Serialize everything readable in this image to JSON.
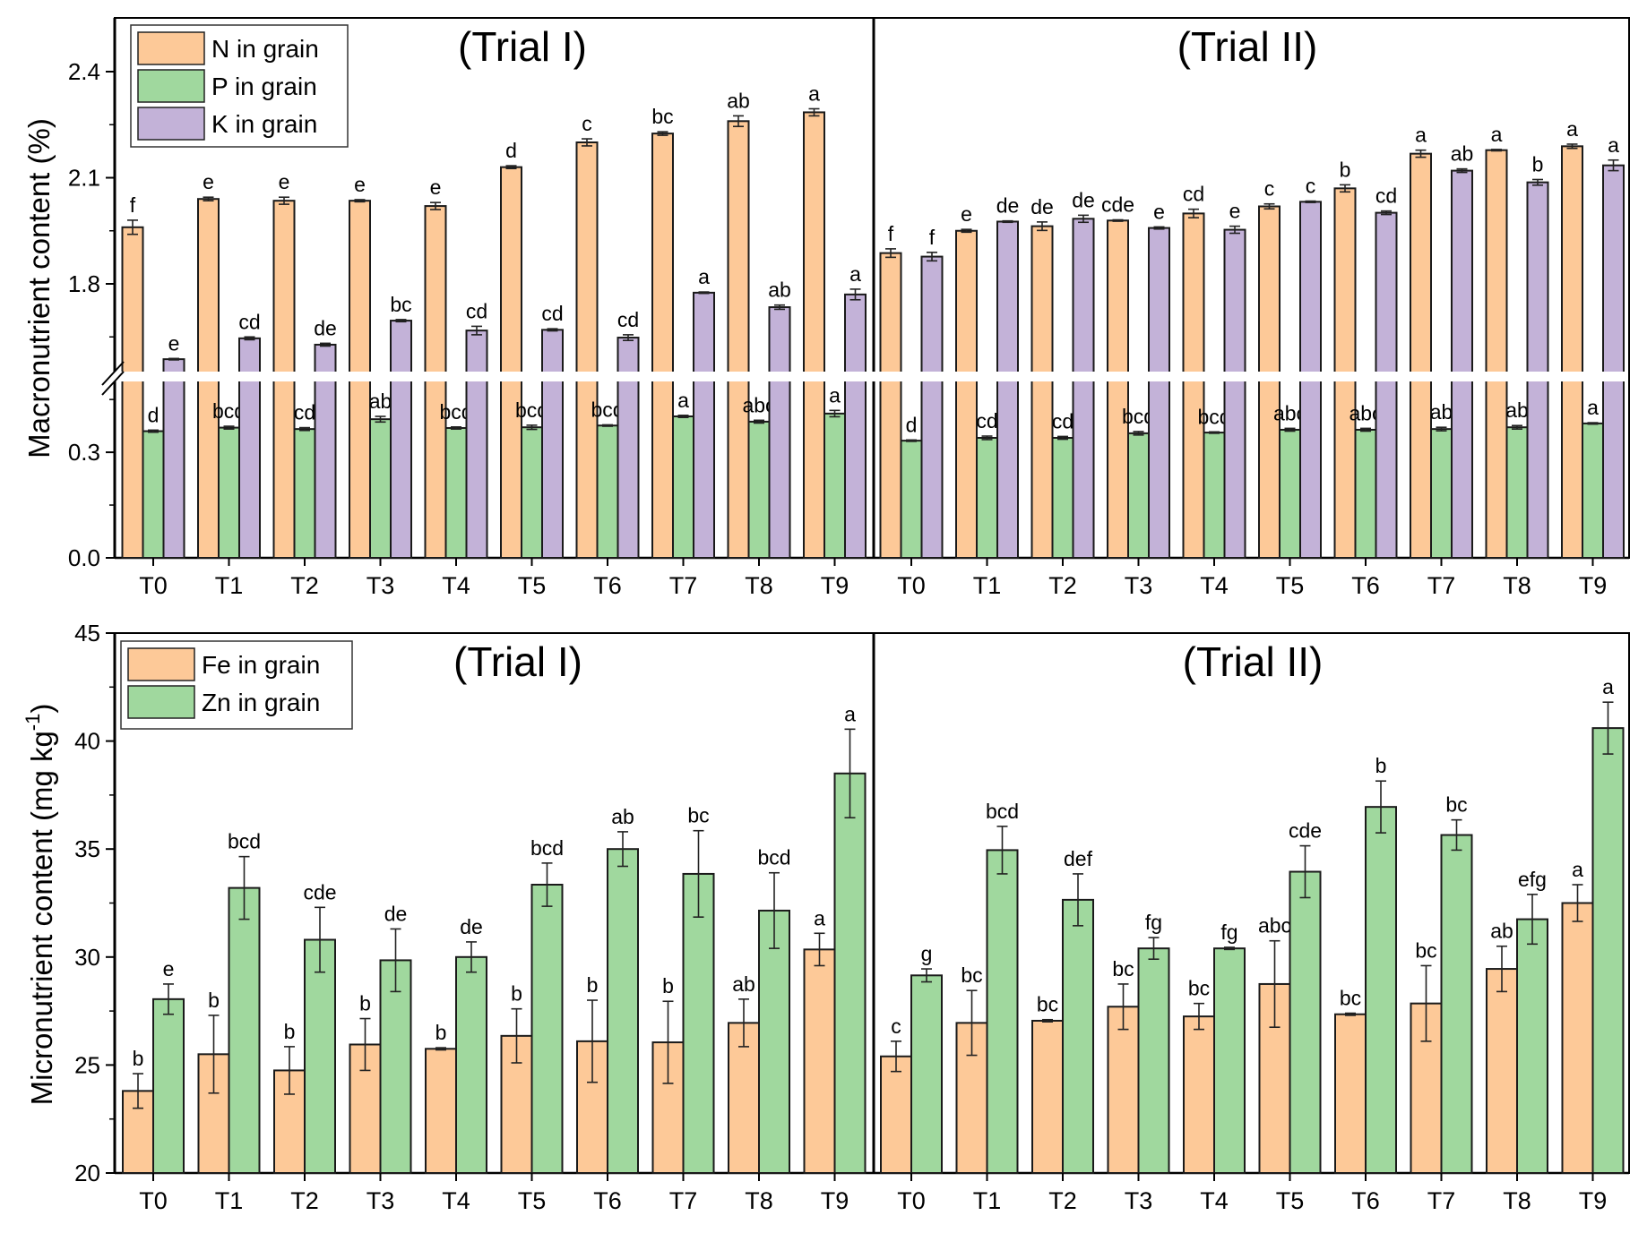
{
  "chart_data": [
    {
      "type": "bar",
      "name": "macronutrient",
      "ylabel": "Macronutrient content (%)",
      "xlabel": "",
      "y_axis_break": [
        0.5,
        1.55
      ],
      "ylim": [
        0.0,
        2.55
      ],
      "yticks": [
        "0.0",
        "0.3",
        "1.8",
        "2.1",
        "2.4"
      ],
      "ytick_values": [
        0.0,
        0.3,
        1.8,
        2.1,
        2.4
      ],
      "grid": false,
      "legend_position": "top-left",
      "categories": [
        "T0",
        "T1",
        "T2",
        "T3",
        "T4",
        "T5",
        "T6",
        "T7",
        "T8",
        "T9"
      ],
      "panels": [
        {
          "title": "(Trial I)",
          "series": [
            {
              "name": "N in grain",
              "color": "#FDC998",
              "values": [
                1.96,
                2.04,
                2.035,
                2.035,
                2.02,
                2.13,
                2.2,
                2.225,
                2.26,
                2.285
              ],
              "errors": [
                0.02,
                0.005,
                0.01,
                0.003,
                0.01,
                0.004,
                0.01,
                0.005,
                0.015,
                0.01
              ],
              "letters": [
                "f",
                "e",
                "e",
                "e",
                "e",
                "d",
                "c",
                "bc",
                "ab",
                "a"
              ]
            },
            {
              "name": "P in grain",
              "color": "#A0D89E",
              "values": [
                0.36,
                0.37,
                0.366,
                0.394,
                0.369,
                0.371,
                0.376,
                0.402,
                0.387,
                0.41
              ],
              "errors": [
                0.003,
                0.004,
                0.004,
                0.008,
                0.003,
                0.006,
                0.002,
                0.003,
                0.004,
                0.009
              ],
              "letters": [
                "d",
                "bcd",
                "cd",
                "ab",
                "bcd",
                "bcd",
                "bcd",
                "a",
                "abc",
                "a"
              ]
            },
            {
              "name": "K in grain",
              "color": "#C3B2D8",
              "values": [
                1.587,
                1.646,
                1.628,
                1.696,
                1.668,
                1.67,
                1.648,
                1.775,
                1.734,
                1.77
              ],
              "errors": [
                0.002,
                0.004,
                0.004,
                0.003,
                0.012,
                0.003,
                0.008,
                0.002,
                0.006,
                0.015
              ],
              "letters": [
                "e",
                "cd",
                "de",
                "bc",
                "cd",
                "cd",
                "cd",
                "a",
                "ab",
                "a"
              ]
            }
          ]
        },
        {
          "title": "(Trial II)",
          "series": [
            {
              "name": "N in grain",
              "color": "#FDC998",
              "values": [
                1.887,
                1.95,
                1.963,
                1.979,
                1.999,
                2.019,
                2.07,
                2.168,
                2.178,
                2.189
              ],
              "errors": [
                0.012,
                0.004,
                0.012,
                0.002,
                0.012,
                0.007,
                0.01,
                0.01,
                0.002,
                0.006
              ],
              "letters": [
                "f",
                "e",
                "de",
                "cde",
                "cd",
                "c",
                "b",
                "a",
                "a",
                "a"
              ]
            },
            {
              "name": "P in grain",
              "color": "#A0D89E",
              "values": [
                0.333,
                0.341,
                0.341,
                0.354,
                0.356,
                0.364,
                0.364,
                0.366,
                0.371,
                0.382
              ],
              "errors": [
                0.002,
                0.005,
                0.004,
                0.005,
                0.002,
                0.004,
                0.004,
                0.005,
                0.005,
                0.002
              ],
              "letters": [
                "d",
                "cd",
                "cd",
                "bcd",
                "bcd",
                "abc",
                "abc",
                "ab",
                "ab",
                "a"
              ]
            },
            {
              "name": "K in grain",
              "color": "#C3B2D8",
              "values": [
                1.877,
                1.976,
                1.984,
                1.958,
                1.953,
                2.032,
                2.001,
                2.12,
                2.087,
                2.135
              ],
              "errors": [
                0.012,
                0.002,
                0.01,
                0.003,
                0.01,
                0.002,
                0.005,
                0.005,
                0.008,
                0.015
              ],
              "letters": [
                "f",
                "de",
                "de",
                "e",
                "e",
                "c",
                "cd",
                "ab",
                "b",
                "a"
              ]
            }
          ]
        }
      ]
    },
    {
      "type": "bar",
      "name": "micronutrient",
      "ylabel": "Micronutrient content (mg kg",
      "ylabel_superscript": "-1",
      "ylabel_suffix": ")",
      "xlabel": "",
      "ylim": [
        20,
        45
      ],
      "yticks": [
        "20",
        "25",
        "30",
        "35",
        "40",
        "45"
      ],
      "ytick_values": [
        20,
        25,
        30,
        35,
        40,
        45
      ],
      "grid": false,
      "legend_position": "top-left",
      "categories": [
        "T0",
        "T1",
        "T2",
        "T3",
        "T4",
        "T5",
        "T6",
        "T7",
        "T8",
        "T9"
      ],
      "panels": [
        {
          "title": "(Trial I)",
          "series": [
            {
              "name": "Fe in grain",
              "color": "#FDC998",
              "values": [
                23.8,
                25.5,
                24.75,
                25.95,
                25.75,
                26.35,
                26.1,
                26.05,
                26.95,
                30.35
              ],
              "errors": [
                0.8,
                1.8,
                1.1,
                1.2,
                0.05,
                1.25,
                1.9,
                1.9,
                1.1,
                0.75
              ],
              "letters": [
                "b",
                "b",
                "b",
                "b",
                "b",
                "b",
                "b",
                "b",
                "ab",
                "a"
              ]
            },
            {
              "name": "Zn in grain",
              "color": "#A0D89E",
              "values": [
                28.05,
                33.2,
                30.8,
                29.85,
                30.0,
                33.35,
                35.0,
                33.85,
                32.15,
                38.5
              ],
              "errors": [
                0.7,
                1.45,
                1.5,
                1.45,
                0.7,
                1.0,
                0.8,
                2.0,
                1.75,
                2.05
              ],
              "letters": [
                "e",
                "bcd",
                "cde",
                "de",
                "de",
                "bcd",
                "ab",
                "bc",
                "bcd",
                "a"
              ]
            }
          ]
        },
        {
          "title": "(Trial II)",
          "series": [
            {
              "name": "Fe in grain",
              "color": "#FDC998",
              "values": [
                25.4,
                26.95,
                27.05,
                27.7,
                27.25,
                28.75,
                27.35,
                27.85,
                29.45,
                32.5
              ],
              "errors": [
                0.7,
                1.5,
                0.05,
                1.05,
                0.6,
                2.0,
                0.05,
                1.75,
                1.05,
                0.85
              ],
              "letters": [
                "c",
                "bc",
                "bc",
                "bc",
                "bc",
                "abc",
                "bc",
                "bc",
                "ab",
                "a"
              ]
            },
            {
              "name": "Zn in grain",
              "color": "#A0D89E",
              "values": [
                29.15,
                34.95,
                32.65,
                30.4,
                30.4,
                33.95,
                36.95,
                35.65,
                31.75,
                40.6
              ],
              "errors": [
                0.3,
                1.1,
                1.2,
                0.5,
                0.05,
                1.2,
                1.2,
                0.7,
                1.15,
                1.2
              ],
              "letters": [
                "g",
                "bcd",
                "def",
                "fg",
                "fg",
                "cde",
                "b",
                "bc",
                "efg",
                "a"
              ]
            }
          ]
        }
      ]
    }
  ]
}
